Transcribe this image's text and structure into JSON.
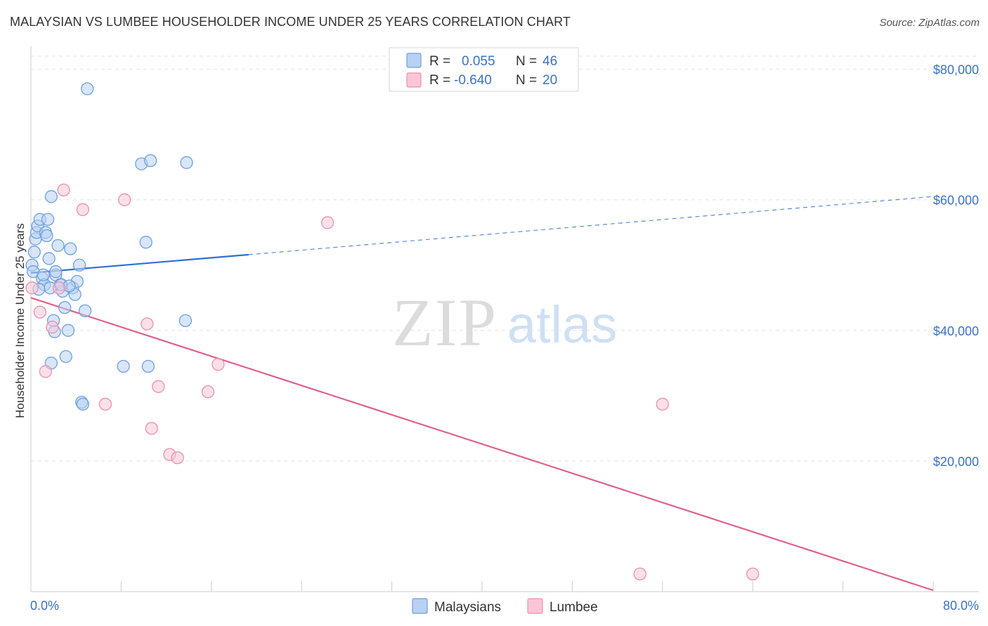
{
  "header": {
    "title": "MALAYSIAN VS LUMBEE HOUSEHOLDER INCOME UNDER 25 YEARS CORRELATION CHART",
    "source": "Source: ZipAtlas.com"
  },
  "watermark": {
    "zip": "ZIP",
    "atlas": "atlas"
  },
  "colors": {
    "malaysians_fill": "#b8d1f3",
    "malaysians_stroke": "#6f9fe0",
    "malaysians_line": "#2f6fcf",
    "lumbee_fill": "#f8c6d6",
    "lumbee_stroke": "#ec8fae",
    "lumbee_line": "#e0608e",
    "axis_text": "#3a72c4"
  },
  "legend": {
    "rows": [
      {
        "r_label": "R =",
        "r_value": "0.055",
        "n_label": "N =",
        "n_value": "46"
      },
      {
        "r_label": "R =",
        "r_value": "-0.640",
        "n_label": "N =",
        "n_value": "20"
      }
    ]
  },
  "bottom_legend": {
    "items": [
      "Malaysians",
      "Lumbee"
    ]
  },
  "chart_data": {
    "type": "scatter",
    "title": "MALAYSIAN VS LUMBEE HOUSEHOLDER INCOME UNDER 25 YEARS CORRELATION CHART",
    "ylabel": "Householder Income Under 25 years",
    "xlabel": "",
    "xlim": [
      0,
      80
    ],
    "ylim": [
      0,
      82000
    ],
    "x_tick_labels": [
      "0.0%",
      "80.0%"
    ],
    "y_ticks": [
      20000,
      40000,
      60000,
      80000
    ],
    "y_tick_labels": [
      "$20,000",
      "$40,000",
      "$60,000",
      "$80,000"
    ],
    "grid": true,
    "series": [
      {
        "name": "Malaysians",
        "r": 0.055,
        "n": 46,
        "trend": {
          "x": [
            0,
            19.3
          ],
          "y": [
            48800,
            51600
          ],
          "dashed_to": [
            80,
            60500
          ]
        },
        "points": [
          [
            0.1,
            50000
          ],
          [
            0.2,
            49000
          ],
          [
            0.3,
            52000
          ],
          [
            0.4,
            54000
          ],
          [
            0.5,
            55000
          ],
          [
            0.6,
            56000
          ],
          [
            0.8,
            57000
          ],
          [
            1.0,
            48000
          ],
          [
            1.2,
            47000
          ],
          [
            1.3,
            55000
          ],
          [
            1.4,
            54500
          ],
          [
            1.5,
            57000
          ],
          [
            1.6,
            51000
          ],
          [
            1.7,
            46500
          ],
          [
            1.8,
            60500
          ],
          [
            2.0,
            41500
          ],
          [
            2.1,
            39800
          ],
          [
            2.2,
            48500
          ],
          [
            2.4,
            53000
          ],
          [
            2.6,
            47000
          ],
          [
            2.8,
            46000
          ],
          [
            3.0,
            43500
          ],
          [
            3.1,
            36000
          ],
          [
            3.3,
            40000
          ],
          [
            3.5,
            52500
          ],
          [
            3.7,
            46500
          ],
          [
            3.9,
            45500
          ],
          [
            4.1,
            47500
          ],
          [
            4.3,
            50000
          ],
          [
            4.5,
            29000
          ],
          [
            4.6,
            28700
          ],
          [
            4.8,
            43000
          ],
          [
            5.0,
            77000
          ],
          [
            1.8,
            35000
          ],
          [
            2.7,
            47000
          ],
          [
            8.2,
            34500
          ],
          [
            9.8,
            65500
          ],
          [
            10.2,
            53500
          ],
          [
            10.4,
            34500
          ],
          [
            10.6,
            66000
          ],
          [
            13.8,
            65700
          ],
          [
            13.7,
            41500
          ],
          [
            0.7,
            46300
          ],
          [
            1.1,
            48500
          ],
          [
            2.2,
            49000
          ],
          [
            3.4,
            46800
          ]
        ]
      },
      {
        "name": "Lumbee",
        "r": -0.64,
        "n": 20,
        "trend": {
          "x": [
            0,
            80
          ],
          "y": [
            45000,
            200
          ]
        },
        "points": [
          [
            0.1,
            46500
          ],
          [
            0.8,
            42800
          ],
          [
            1.3,
            33700
          ],
          [
            1.9,
            40500
          ],
          [
            2.5,
            46500
          ],
          [
            2.9,
            61500
          ],
          [
            4.6,
            58500
          ],
          [
            6.6,
            28700
          ],
          [
            8.3,
            60000
          ],
          [
            10.3,
            41000
          ],
          [
            11.3,
            31400
          ],
          [
            10.7,
            25000
          ],
          [
            12.3,
            21000
          ],
          [
            13.0,
            20500
          ],
          [
            15.7,
            30600
          ],
          [
            16.6,
            34800
          ],
          [
            26.3,
            56500
          ],
          [
            54.0,
            2700
          ],
          [
            56.0,
            28700
          ],
          [
            64.0,
            2700
          ]
        ]
      }
    ]
  }
}
